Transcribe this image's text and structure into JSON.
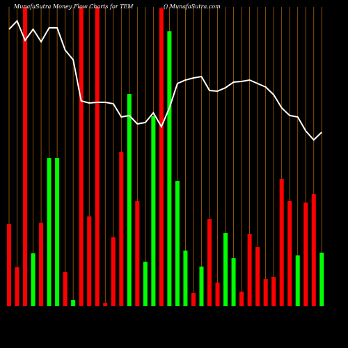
{
  "chart_data": {
    "type": "bar",
    "title": "MunafaSutra  Money Flow  Charts for TEM",
    "subtitle": "() MunafaSutra.com",
    "categories": [
      null,
      null,
      null,
      null,
      null,
      null,
      null,
      null,
      null,
      null,
      null,
      null,
      null,
      null,
      null,
      null,
      null,
      null,
      null,
      null,
      null,
      null,
      null,
      null,
      null,
      null,
      null,
      null,
      null,
      null,
      null,
      null,
      null,
      null,
      null,
      null,
      null,
      null,
      null,
      null
    ],
    "series": [
      {
        "values": [
          118,
          56,
          430,
          76,
          120,
          213,
          213,
          49,
          9,
          430,
          129,
          430,
          5,
          99,
          222,
          305,
          151,
          64,
          273,
          428,
          395,
          180,
          80,
          19,
          57,
          125,
          34,
          105,
          69,
          21,
          104,
          85,
          39,
          42,
          183,
          151,
          73,
          149,
          161,
          77
        ],
        "colors": [
          "#ff0000",
          "#ff0000",
          "#ff0000",
          "#00ff00",
          "#ff0000",
          "#00ff00",
          "#00ff00",
          "#ff0000",
          "#00ff00",
          "#ff0000",
          "#ff0000",
          "#ff0000",
          "#ff0000",
          "#ff0000",
          "#ff0000",
          "#00ff00",
          "#ff0000",
          "#00ff00",
          "#00ff00",
          "#ff0000",
          "#00ff00",
          "#00ff00",
          "#00ff00",
          "#ff0000",
          "#00ff00",
          "#ff0000",
          "#ff0000",
          "#00ff00",
          "#00ff00",
          "#ff0000",
          "#ff0000",
          "#ff0000",
          "#ff0000",
          "#ff0000",
          "#ff0000",
          "#ff0000",
          "#00ff00",
          "#ff0000",
          "#ff0000",
          "#00ff00"
        ]
      },
      {
        "type": "line",
        "axis": "y2",
        "color": "#ffffff",
        "values": [
          398,
          410,
          382,
          398,
          380,
          400,
          400,
          368,
          354,
          295,
          292,
          293,
          293,
          291,
          272,
          274,
          262,
          264,
          278,
          258,
          285,
          320,
          325,
          328,
          330,
          310,
          309,
          314,
          322,
          323,
          325,
          320,
          315,
          304,
          285,
          274,
          272,
          252,
          239,
          250
        ]
      }
    ],
    "ylim": [
      0,
      430
    ],
    "y2lim": [
      0,
      430
    ],
    "grid": true,
    "grid_color": "#b36200",
    "background": "#000000"
  }
}
